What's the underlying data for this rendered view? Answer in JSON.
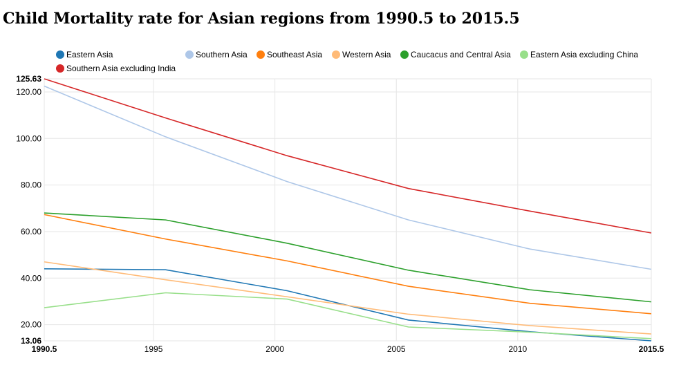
{
  "title": "Child Mortality rate for Asian regions from 1990.5 to 2015.5",
  "chart_data": {
    "type": "line",
    "title": "Child Mortality rate for Asian regions from 1990.5 to 2015.5",
    "xlabel": "",
    "ylabel": "",
    "x": [
      1990.5,
      1995.5,
      2000.5,
      2005.5,
      2010.5,
      2015.5
    ],
    "xlim": [
      1990.5,
      2015.5
    ],
    "ylim": [
      13.06,
      125.63
    ],
    "x_ticks": [
      {
        "value": 1990.5,
        "label": "1990.5",
        "bold": true
      },
      {
        "value": 1995,
        "label": "1995",
        "bold": false
      },
      {
        "value": 2000,
        "label": "2000",
        "bold": false
      },
      {
        "value": 2005,
        "label": "2005",
        "bold": false
      },
      {
        "value": 2010,
        "label": "2010",
        "bold": false
      },
      {
        "value": 2015.5,
        "label": "2015.5",
        "bold": true
      }
    ],
    "y_ticks": [
      {
        "value": 13.06,
        "label": "13.06",
        "bold": true
      },
      {
        "value": 20,
        "label": "20.00",
        "bold": false
      },
      {
        "value": 40,
        "label": "40.00",
        "bold": false
      },
      {
        "value": 60,
        "label": "60.00",
        "bold": false
      },
      {
        "value": 80,
        "label": "80.00",
        "bold": false
      },
      {
        "value": 100,
        "label": "100.00",
        "bold": false
      },
      {
        "value": 120,
        "label": "120.00",
        "bold": false
      },
      {
        "value": 125.63,
        "label": "125.63",
        "bold": true
      }
    ],
    "grid": true,
    "legend_position": "top",
    "series": [
      {
        "name": "Eastern Asia",
        "color": "#1f77b4",
        "values": [
          44.0,
          43.6,
          34.6,
          22.0,
          17.0,
          13.06
        ]
      },
      {
        "name": "Southern Asia",
        "color": "#aec7e8",
        "values": [
          122.5,
          100.7,
          81.5,
          65.0,
          52.5,
          43.8
        ]
      },
      {
        "name": "Southeast Asia",
        "color": "#ff7f0e",
        "values": [
          67.3,
          56.8,
          47.4,
          36.5,
          29.2,
          24.7
        ]
      },
      {
        "name": "Western Asia",
        "color": "#ffbb78",
        "values": [
          47.0,
          39.3,
          32.0,
          24.5,
          19.6,
          16.0
        ]
      },
      {
        "name": "Caucacus and Central Asia",
        "color": "#2ca02c",
        "values": [
          68.0,
          65.0,
          55.0,
          43.4,
          35.0,
          29.8
        ]
      },
      {
        "name": "Eastern Asia excluding China",
        "color": "#98df8a",
        "values": [
          27.3,
          33.7,
          31.0,
          19.0,
          16.8,
          14.0
        ]
      },
      {
        "name": "Southern Asia excluding India",
        "color": "#d62728",
        "values": [
          125.63,
          108.8,
          92.6,
          78.5,
          68.8,
          59.4
        ]
      }
    ]
  }
}
